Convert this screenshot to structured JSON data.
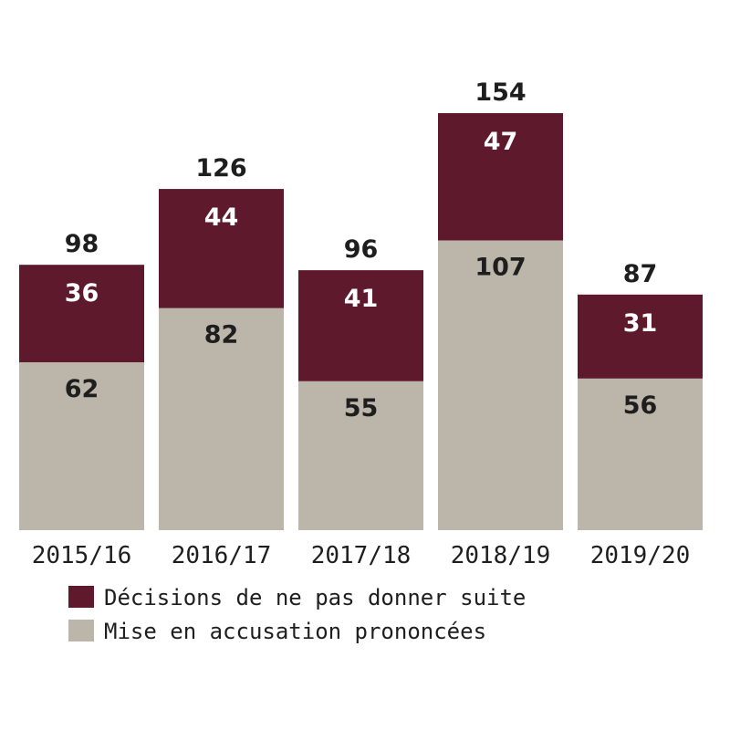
{
  "chart_data": {
    "type": "bar",
    "stacked": true,
    "categories": [
      "2015/16",
      "2016/17",
      "2017/18",
      "2018/19",
      "2019/20"
    ],
    "series": [
      {
        "name": "Mise en accusation prononcées",
        "values": [
          62,
          82,
          55,
          107,
          56
        ],
        "color": "#bcb5a9"
      },
      {
        "name": "Décisions de ne pas donner suite",
        "values": [
          36,
          44,
          41,
          47,
          31
        ],
        "color": "#5e1a2c"
      }
    ],
    "totals": [
      "98",
      "126",
      "96",
      "154",
      "87"
    ],
    "ylim": [
      0,
      154
    ],
    "grid": false,
    "legend": {
      "placement": "bottom-left",
      "order": [
        "Décisions de ne pas donner suite",
        "Mise en accusation prononcées"
      ]
    }
  }
}
